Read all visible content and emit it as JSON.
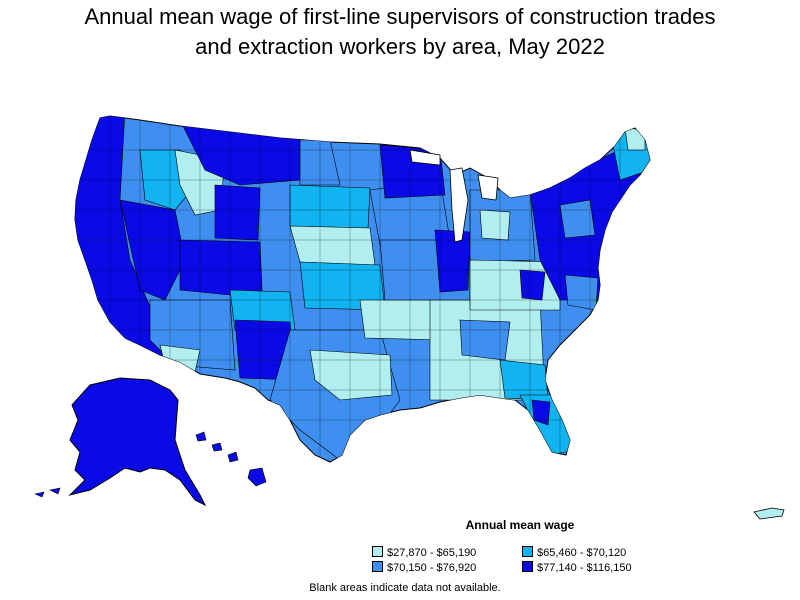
{
  "title_line1": "Annual mean wage of first-line supervisors of construction trades",
  "title_line2": "and extraction workers by area, May 2022",
  "legend": {
    "title": "Annual mean wage",
    "items": [
      {
        "label": "$27,870 - $65,190",
        "color": "#b0eef0"
      },
      {
        "label": "$65,460 - $70,120",
        "color": "#11b3f0"
      },
      {
        "label": "$70,150 - $76,920",
        "color": "#3f8ff0"
      },
      {
        "label": "$77,140 - $116,150",
        "color": "#0a0ae6"
      }
    ]
  },
  "note": "Blank areas indicate data not available."
}
